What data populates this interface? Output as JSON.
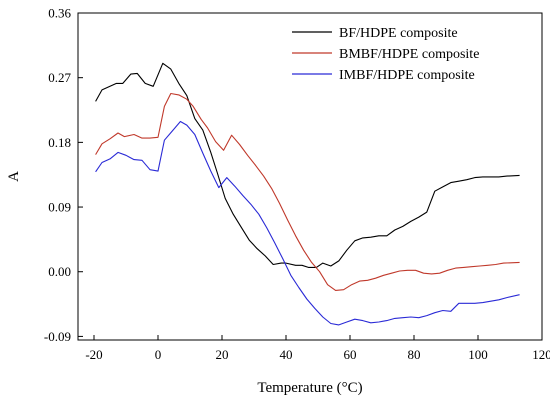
{
  "chart_data": {
    "type": "line",
    "title": "",
    "xlabel": "Temperature (°C)",
    "ylabel": "A",
    "xlim": [
      -25,
      120
    ],
    "ylim": [
      -0.095,
      0.36
    ],
    "x_ticks": [
      "-20",
      "0",
      "20",
      "40",
      "60",
      "80",
      "100",
      "120"
    ],
    "x_tick_values": [
      -20,
      0,
      20,
      40,
      60,
      80,
      100,
      120
    ],
    "y_ticks": [
      "-0.09",
      "0.00",
      "0.09",
      "0.18",
      "0.27",
      "0.36"
    ],
    "y_tick_values": [
      -0.09,
      0,
      0.09,
      0.18,
      0.27,
      0.36
    ],
    "grid": false,
    "legend_position": "top-right",
    "series": [
      {
        "name": "BF/HDPE composite",
        "color": "#000000",
        "x": [
          -19.5,
          -17.5,
          -13,
          -11,
          -8.5,
          -6.5,
          -4,
          -1.5,
          1.5,
          4,
          6.5,
          9,
          11.5,
          14,
          16.5,
          18.5,
          21,
          23.5,
          26,
          28.5,
          31,
          33.5,
          36,
          38.5,
          40,
          43,
          45,
          47,
          49.5,
          51.5,
          54,
          56.5,
          59,
          61.5,
          64,
          66.5,
          69,
          71.5,
          74,
          76.5,
          79,
          81.5,
          84,
          86.5,
          89,
          91.5,
          94,
          96.5,
          99,
          101.5,
          104,
          106.5,
          109,
          113
        ],
        "values": [
          0.237,
          0.253,
          0.262,
          0.262,
          0.275,
          0.276,
          0.262,
          0.258,
          0.29,
          0.282,
          0.262,
          0.245,
          0.213,
          0.197,
          0.166,
          0.138,
          0.102,
          0.08,
          0.062,
          0.044,
          0.032,
          0.022,
          0.01,
          0.012,
          0.012,
          0.009,
          0.009,
          0.006,
          0.006,
          0.012,
          0.008,
          0.015,
          0.03,
          0.043,
          0.047,
          0.048,
          0.05,
          0.05,
          0.058,
          0.063,
          0.07,
          0.076,
          0.083,
          0.112,
          0.118,
          0.124,
          0.126,
          0.128,
          0.131,
          0.132,
          0.132,
          0.132,
          0.133,
          0.134
        ]
      },
      {
        "name": "BMBF/HDPE composite",
        "color": "#c0392b",
        "x": [
          -19.5,
          -17.5,
          -15,
          -12.5,
          -10.5,
          -7.5,
          -5,
          -2.5,
          0,
          2,
          4,
          6.5,
          9,
          11,
          13.5,
          15.5,
          18,
          20.5,
          23,
          25.5,
          28,
          30.5,
          33,
          35.5,
          38,
          40.5,
          43,
          45.5,
          48,
          50.5,
          53,
          55.5,
          58,
          60.5,
          63,
          65.5,
          68,
          70.5,
          73,
          75.5,
          78,
          80.5,
          83,
          85.5,
          88,
          90.5,
          93,
          95.5,
          98,
          100.5,
          103,
          105.5,
          108,
          113
        ],
        "values": [
          0.163,
          0.178,
          0.185,
          0.193,
          0.188,
          0.191,
          0.186,
          0.186,
          0.187,
          0.23,
          0.248,
          0.246,
          0.24,
          0.23,
          0.212,
          0.2,
          0.181,
          0.169,
          0.19,
          0.177,
          0.162,
          0.148,
          0.133,
          0.116,
          0.095,
          0.072,
          0.05,
          0.03,
          0.013,
          0.0,
          -0.018,
          -0.026,
          -0.025,
          -0.018,
          -0.013,
          -0.012,
          -0.009,
          -0.005,
          -0.002,
          0.001,
          0.002,
          0.002,
          -0.002,
          -0.003,
          -0.002,
          0.002,
          0.005,
          0.006,
          0.007,
          0.008,
          0.009,
          0.01,
          0.012,
          0.013
        ]
      },
      {
        "name": "IMBF/HDPE composite",
        "color": "#2a2ad6",
        "x": [
          -19.5,
          -17.5,
          -15,
          -12.5,
          -10,
          -7.5,
          -5,
          -2.5,
          0,
          2,
          4.5,
          7,
          9,
          11.5,
          14,
          16.5,
          19,
          21.5,
          24,
          26.5,
          29,
          31.5,
          34,
          36.5,
          39,
          41.5,
          44,
          46.5,
          49,
          51.5,
          54,
          56.5,
          59,
          61.5,
          64,
          66.5,
          69,
          71.5,
          74,
          76.5,
          79,
          81.5,
          84,
          86.5,
          89,
          91.5,
          94,
          96.5,
          99,
          101.5,
          104,
          106.5,
          109,
          113
        ],
        "values": [
          0.139,
          0.152,
          0.157,
          0.166,
          0.162,
          0.156,
          0.155,
          0.142,
          0.14,
          0.183,
          0.196,
          0.209,
          0.204,
          0.191,
          0.165,
          0.14,
          0.117,
          0.131,
          0.119,
          0.106,
          0.094,
          0.08,
          0.061,
          0.04,
          0.018,
          -0.005,
          -0.022,
          -0.038,
          -0.051,
          -0.063,
          -0.072,
          -0.074,
          -0.07,
          -0.066,
          -0.068,
          -0.071,
          -0.07,
          -0.068,
          -0.065,
          -0.064,
          -0.063,
          -0.064,
          -0.061,
          -0.057,
          -0.054,
          -0.055,
          -0.044,
          -0.044,
          -0.044,
          -0.043,
          -0.041,
          -0.039,
          -0.036,
          -0.032
        ]
      }
    ]
  }
}
